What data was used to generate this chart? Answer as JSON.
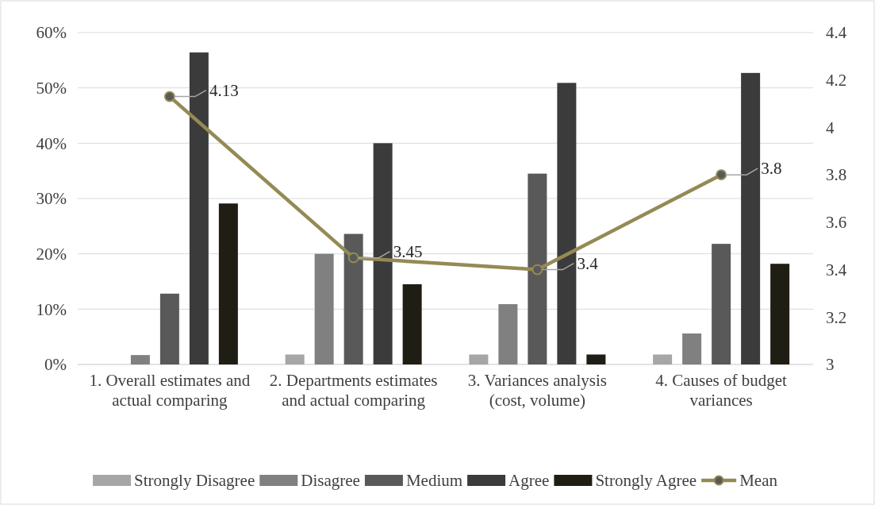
{
  "chart_data": {
    "type": "bar",
    "categories": [
      "1. Overall estimates and actual comparing",
      "2. Departments estimates and actual comparing",
      "3. Variances analysis (cost, volume)",
      "4. Causes of budget variances"
    ],
    "series": [
      {
        "name": "Strongly Disagree",
        "color": "#a6a6a6",
        "values": [
          0,
          1.8,
          1.8,
          1.8
        ]
      },
      {
        "name": "Disagree",
        "color": "#808080",
        "values": [
          1.7,
          20,
          10.9,
          5.6
        ]
      },
      {
        "name": "Medium",
        "color": "#595959",
        "values": [
          12.8,
          23.6,
          34.5,
          21.8
        ]
      },
      {
        "name": "Agree",
        "color": "#3b3b3b",
        "values": [
          56.4,
          40,
          50.9,
          52.7
        ]
      },
      {
        "name": "Strongly Agree",
        "color": "#201d14",
        "values": [
          29.1,
          14.5,
          1.8,
          18.2
        ]
      },
      {
        "name": "Mean",
        "type": "line",
        "axis": "y2",
        "color": "#948a54",
        "marker": "circle",
        "values": [
          4.13,
          3.45,
          3.4,
          3.8
        ],
        "value_labels": [
          "4.13",
          "3.45",
          "3.4",
          "3.8"
        ]
      }
    ],
    "ylim": [
      0,
      60
    ],
    "yticks": [
      {
        "value": 0,
        "label": "0%"
      },
      {
        "value": 10,
        "label": "10%"
      },
      {
        "value": 20,
        "label": "20%"
      },
      {
        "value": 30,
        "label": "30%"
      },
      {
        "value": 40,
        "label": "40%"
      },
      {
        "value": 50,
        "label": "50%"
      },
      {
        "value": 60,
        "label": "60%"
      }
    ],
    "y2lim": [
      3,
      4.4
    ],
    "y2ticks": [
      3,
      3.2,
      3.4,
      3.6,
      3.8,
      4,
      4.2,
      4.4
    ],
    "grid": "y",
    "legend": "bottom"
  }
}
